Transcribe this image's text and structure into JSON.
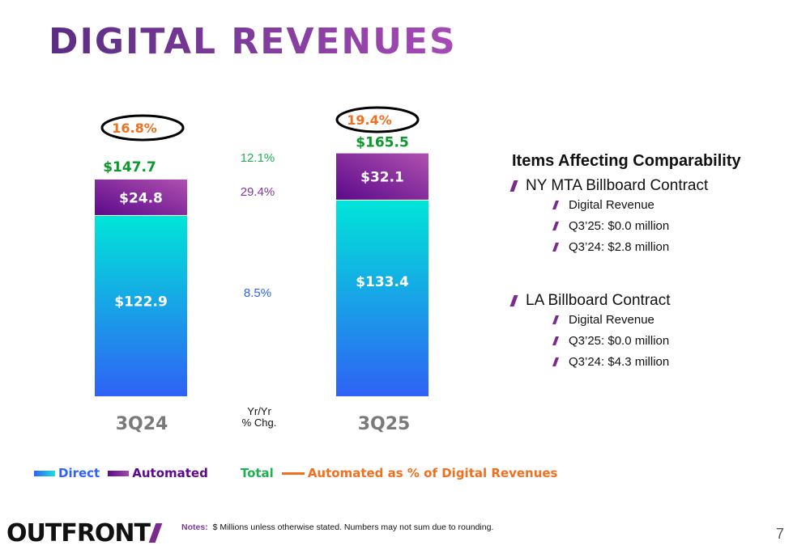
{
  "title": "DIGITAL REVENUES",
  "chart_data": {
    "type": "bar",
    "stacked": true,
    "categories": [
      "3Q24",
      "3Q25"
    ],
    "series": [
      {
        "name": "Direct",
        "values": [
          122.9,
          133.4
        ],
        "labels": [
          "$122.9",
          "$133.4"
        ],
        "color": "#1ee0d8"
      },
      {
        "name": "Automated",
        "values": [
          24.8,
          32.1
        ],
        "labels": [
          "$24.8",
          "$32.1"
        ],
        "color": "#6a1b9a"
      }
    ],
    "totals": {
      "name": "Total",
      "values": [
        147.7,
        165.5
      ],
      "labels": [
        "$147.7",
        "$165.5"
      ],
      "color": "#0a9a2a"
    },
    "automated_pct": {
      "name": "Automated as % of Digital Revenues",
      "values": [
        16.8,
        19.4
      ],
      "labels": [
        "16.8%",
        "19.4%"
      ],
      "color": "#f07020"
    },
    "yoy": {
      "header_line1": "Yr/Yr",
      "header_line2": "% Chg.",
      "total": "12.1%",
      "automated": "29.4%",
      "direct": "8.5%"
    },
    "legend_placement": "bottom"
  },
  "panel": {
    "heading": "Items Affecting Comparability",
    "groups": [
      {
        "title": "NY MTA Billboard Contract",
        "items": [
          "Digital Revenue",
          "Q3’25: $0.0 million",
          "Q3’24: $2.8 million"
        ]
      },
      {
        "title": "LA Billboard Contract",
        "items": [
          "Digital Revenue",
          "Q3’25: $0.0 million",
          "Q3’24: $4.3 million"
        ]
      }
    ]
  },
  "footer": {
    "logo": "OUTFRONT",
    "notes_label": "Notes:",
    "notes": "$ Millions unless otherwise stated. Numbers may not sum due to rounding.",
    "page": "7"
  }
}
